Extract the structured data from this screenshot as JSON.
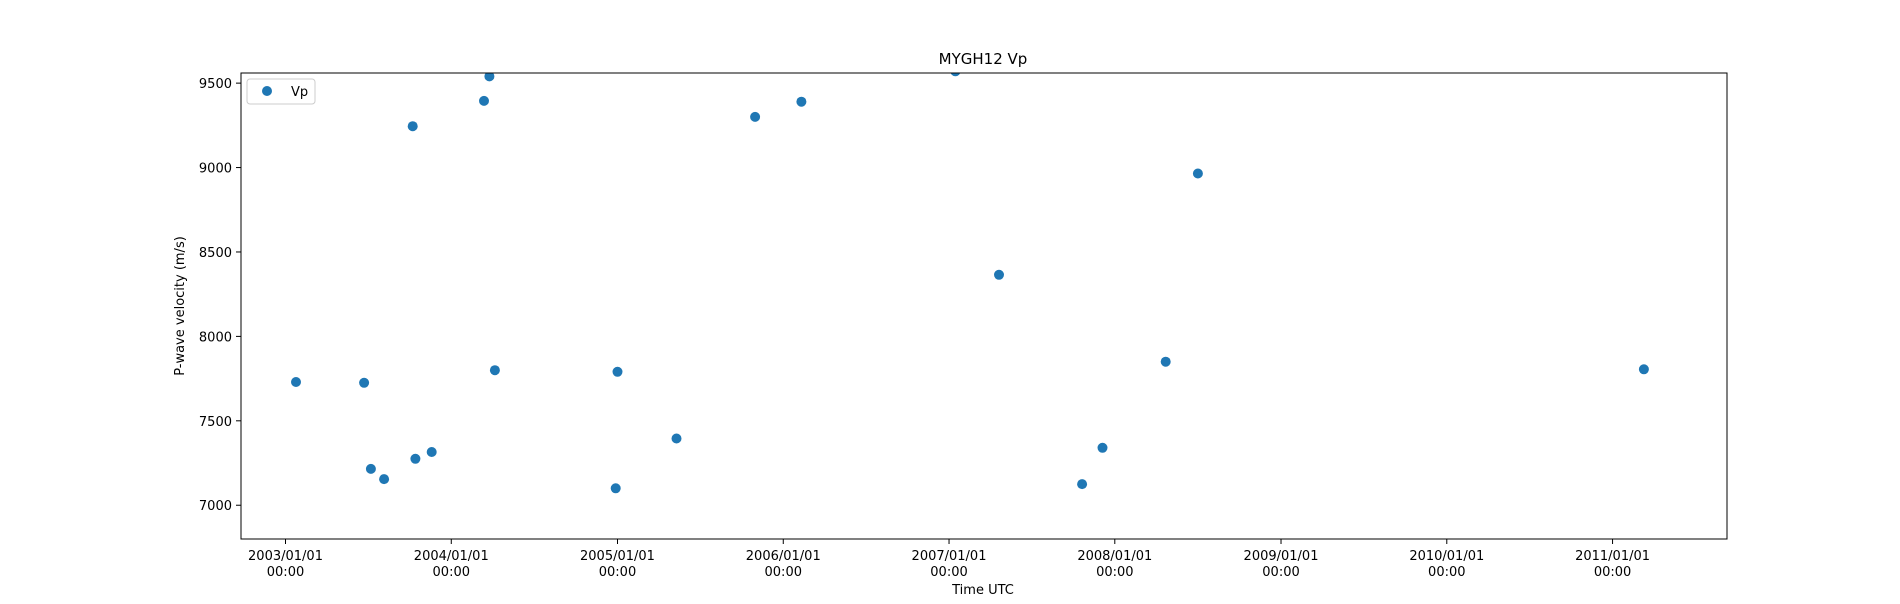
{
  "chart_data": {
    "type": "scatter",
    "title": "MYGH12 Vp",
    "xlabel": "Time UTC",
    "ylabel": "P-wave velocity (m/s)",
    "xlim": [
      "2002-09-25",
      "2011-09-10"
    ],
    "ylim": [
      6800,
      9560
    ],
    "grid": false,
    "legend_position": "upper-left",
    "marker_color": "#1f77b4",
    "x_ticks": [
      {
        "value": "2003-01-01",
        "line1": "2003/01/01",
        "line2": "00:00"
      },
      {
        "value": "2004-01-01",
        "line1": "2004/01/01",
        "line2": "00:00"
      },
      {
        "value": "2005-01-01",
        "line1": "2005/01/01",
        "line2": "00:00"
      },
      {
        "value": "2006-01-01",
        "line1": "2006/01/01",
        "line2": "00:00"
      },
      {
        "value": "2007-01-01",
        "line1": "2007/01/01",
        "line2": "00:00"
      },
      {
        "value": "2008-01-01",
        "line1": "2008/01/01",
        "line2": "00:00"
      },
      {
        "value": "2009-01-01",
        "line1": "2009/01/01",
        "line2": "00:00"
      },
      {
        "value": "2010-01-01",
        "line1": "2010/01/01",
        "line2": "00:00"
      },
      {
        "value": "2011-01-01",
        "line1": "2011/01/01",
        "line2": "00:00"
      }
    ],
    "y_ticks": [
      {
        "value": 7000,
        "label": "7000"
      },
      {
        "value": 7500,
        "label": "7500"
      },
      {
        "value": 8000,
        "label": "8000"
      },
      {
        "value": 8500,
        "label": "8500"
      },
      {
        "value": 9000,
        "label": "9000"
      },
      {
        "value": 9500,
        "label": "9500"
      }
    ],
    "series": [
      {
        "name": "Vp",
        "points": [
          {
            "x": "2003-01-24",
            "y": 7730
          },
          {
            "x": "2003-06-23",
            "y": 7725
          },
          {
            "x": "2003-07-08",
            "y": 7215
          },
          {
            "x": "2003-08-06",
            "y": 7155
          },
          {
            "x": "2003-10-08",
            "y": 9245
          },
          {
            "x": "2003-10-14",
            "y": 7275
          },
          {
            "x": "2003-11-19",
            "y": 7315
          },
          {
            "x": "2004-03-13",
            "y": 9395
          },
          {
            "x": "2004-03-25",
            "y": 9540
          },
          {
            "x": "2004-04-06",
            "y": 7800
          },
          {
            "x": "2004-12-28",
            "y": 7100
          },
          {
            "x": "2005-01-01",
            "y": 7790
          },
          {
            "x": "2005-05-11",
            "y": 7395
          },
          {
            "x": "2005-10-31",
            "y": 9300
          },
          {
            "x": "2006-02-10",
            "y": 9390
          },
          {
            "x": "2007-01-15",
            "y": 9570
          },
          {
            "x": "2007-04-21",
            "y": 8365
          },
          {
            "x": "2007-10-21",
            "y": 7125
          },
          {
            "x": "2007-12-05",
            "y": 7340
          },
          {
            "x": "2008-04-22",
            "y": 7850
          },
          {
            "x": "2008-07-02",
            "y": 8965
          },
          {
            "x": "2011-03-11",
            "y": 7805
          }
        ]
      }
    ]
  }
}
